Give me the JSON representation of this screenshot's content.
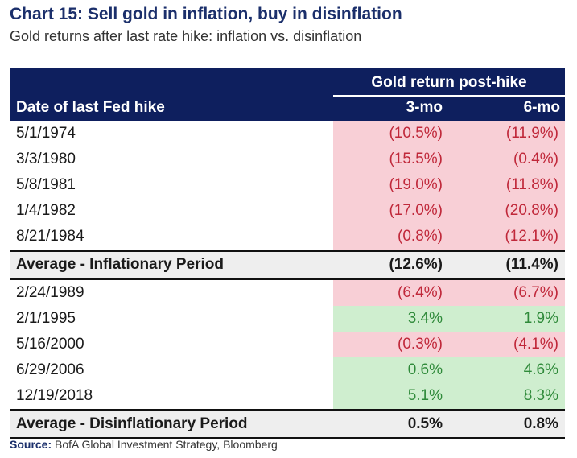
{
  "title": "Chart 15: Sell gold in inflation, buy in disinflation",
  "subtitle": "Gold returns after last rate hike: inflation vs. disinflation",
  "table": {
    "group_header": "Gold return post-hike",
    "col_date": "Date of last Fed hike",
    "col_3mo": "3-mo",
    "col_6mo": "6-mo",
    "inflation_rows": [
      {
        "date": "5/1/1974",
        "m3": "(10.5%)",
        "m6": "(11.9%)",
        "s3": "neg",
        "s6": "neg"
      },
      {
        "date": "3/3/1980",
        "m3": "(15.5%)",
        "m6": "(0.4%)",
        "s3": "neg",
        "s6": "neg"
      },
      {
        "date": "5/8/1981",
        "m3": "(19.0%)",
        "m6": "(11.8%)",
        "s3": "neg",
        "s6": "neg"
      },
      {
        "date": "1/4/1982",
        "m3": "(17.0%)",
        "m6": "(20.8%)",
        "s3": "neg",
        "s6": "neg"
      },
      {
        "date": "8/21/1984",
        "m3": "(0.8%)",
        "m6": "(12.1%)",
        "s3": "neg",
        "s6": "neg"
      }
    ],
    "inflation_avg": {
      "label": "Average - Inflationary Period",
      "m3": "(12.6%)",
      "m6": "(11.4%)"
    },
    "disinflation_rows": [
      {
        "date": "2/24/1989",
        "m3": "(6.4%)",
        "m6": "(6.7%)",
        "s3": "neg",
        "s6": "neg"
      },
      {
        "date": "2/1/1995",
        "m3": "3.4%",
        "m6": "1.9%",
        "s3": "pos",
        "s6": "pos"
      },
      {
        "date": "5/16/2000",
        "m3": "(0.3%)",
        "m6": "(4.1%)",
        "s3": "neg",
        "s6": "neg"
      },
      {
        "date": "6/29/2006",
        "m3": "0.6%",
        "m6": "4.6%",
        "s3": "pos",
        "s6": "pos"
      },
      {
        "date": "12/19/2018",
        "m3": "5.1%",
        "m6": "8.3%",
        "s3": "pos",
        "s6": "pos"
      }
    ],
    "disinflation_avg": {
      "label": "Average - Disinflationary Period",
      "m3": "0.5%",
      "m6": "0.8%"
    }
  },
  "source": {
    "label": "Source:",
    "text": "BofA Global Investment Strategy, Bloomberg"
  },
  "colors": {
    "header_bg": "#0e1f5e",
    "negative_fill": "#f8cfd6",
    "negative_text": "#c0283a",
    "positive_fill": "#cfeecf",
    "positive_text": "#2f8a3a"
  }
}
